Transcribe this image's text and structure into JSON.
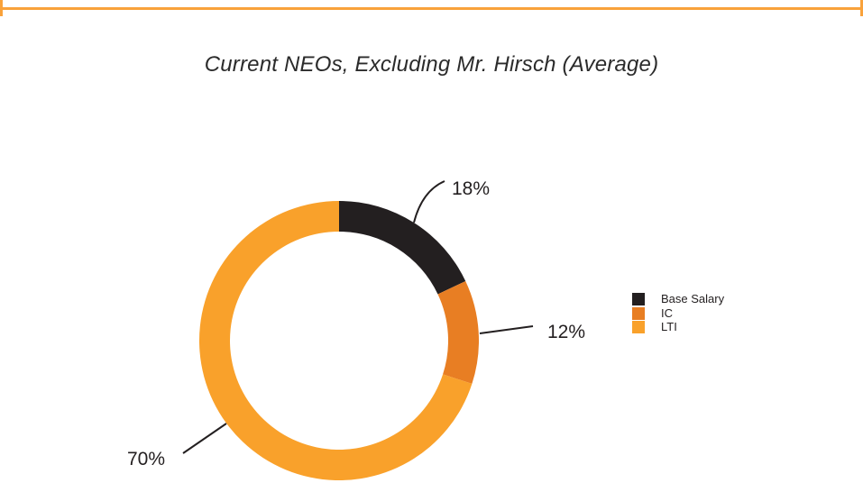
{
  "frame": {
    "rule_color": "#F9A23B"
  },
  "chart_data": {
    "type": "pie",
    "subtype": "donut",
    "title": "Current NEOs, Excluding Mr. Hirsch (Average)",
    "categories": [
      "Base Salary",
      "IC",
      "LTI"
    ],
    "values": [
      18,
      12,
      70
    ],
    "slices": [
      {
        "label": "Base Salary",
        "value": 18,
        "pct_label": "18%",
        "color": "#231F20"
      },
      {
        "label": "IC",
        "value": 12,
        "pct_label": "12%",
        "color": "#E87E23"
      },
      {
        "label": "LTI",
        "value": 70,
        "pct_label": "70%",
        "color": "#F9A12B"
      }
    ],
    "start_angle_deg": 0,
    "direction": "clockwise",
    "legend_position": "right",
    "donut_hole": true
  }
}
